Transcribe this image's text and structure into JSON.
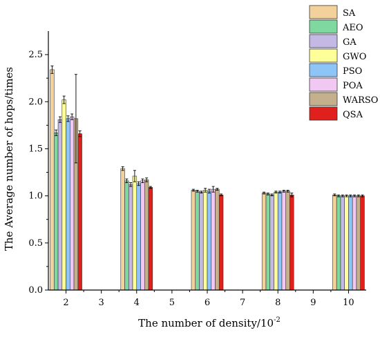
{
  "chart_data": {
    "type": "bar",
    "xlabel": "The number of density/10",
    "xlabel_exponent": "-2",
    "ylabel": "The Average number of hops/times",
    "ylim": [
      0,
      2.75
    ],
    "yticks": [
      "0.0",
      "0.5",
      "1.0",
      "1.5",
      "2.0",
      "2.5"
    ],
    "xlim": [
      1.5,
      10.5
    ],
    "xticks": [
      "2",
      "3",
      "4",
      "5",
      "6",
      "7",
      "8",
      "9",
      "10"
    ],
    "categories": [
      2,
      4,
      6,
      8,
      10
    ],
    "legend_position": "top-right",
    "grid": false,
    "series": [
      {
        "name": "SA",
        "color": "#f3d19a",
        "values": [
          2.34,
          1.29,
          1.06,
          1.03,
          1.01
        ],
        "errors": [
          0.04,
          0.02,
          0.01,
          0.01,
          0.01
        ]
      },
      {
        "name": "AEO",
        "color": "#7fd8a0",
        "values": [
          1.67,
          1.16,
          1.05,
          1.02,
          1.0
        ],
        "errors": [
          0.03,
          0.02,
          0.01,
          0.01,
          0.01
        ]
      },
      {
        "name": "GA",
        "color": "#c4b9e4",
        "values": [
          1.81,
          1.12,
          1.04,
          1.01,
          1.0
        ],
        "errors": [
          0.03,
          0.02,
          0.01,
          0.01,
          0.01
        ]
      },
      {
        "name": "GWO",
        "color": "#ffff9a",
        "values": [
          2.02,
          1.21,
          1.06,
          1.04,
          1.0
        ],
        "errors": [
          0.04,
          0.06,
          0.02,
          0.01,
          0.01
        ]
      },
      {
        "name": "PSO",
        "color": "#8ec5f7",
        "values": [
          1.82,
          1.13,
          1.05,
          1.04,
          1.0
        ],
        "errors": [
          0.03,
          0.02,
          0.02,
          0.01,
          0.01
        ]
      },
      {
        "name": "POA",
        "color": "#f0c8f2",
        "values": [
          1.84,
          1.16,
          1.07,
          1.05,
          1.0
        ],
        "errors": [
          0.03,
          0.02,
          0.03,
          0.01,
          0.01
        ]
      },
      {
        "name": "WARSO",
        "color": "#c4b08c",
        "values": [
          1.82,
          1.17,
          1.07,
          1.05,
          1.0
        ],
        "errors": [
          0.47,
          0.02,
          0.01,
          0.01,
          0.01
        ]
      },
      {
        "name": "QSA",
        "color": "#e0201c",
        "values": [
          1.66,
          1.09,
          1.01,
          1.01,
          1.0
        ],
        "errors": [
          0.03,
          0.01,
          0.01,
          0.02,
          0.01
        ]
      }
    ]
  }
}
